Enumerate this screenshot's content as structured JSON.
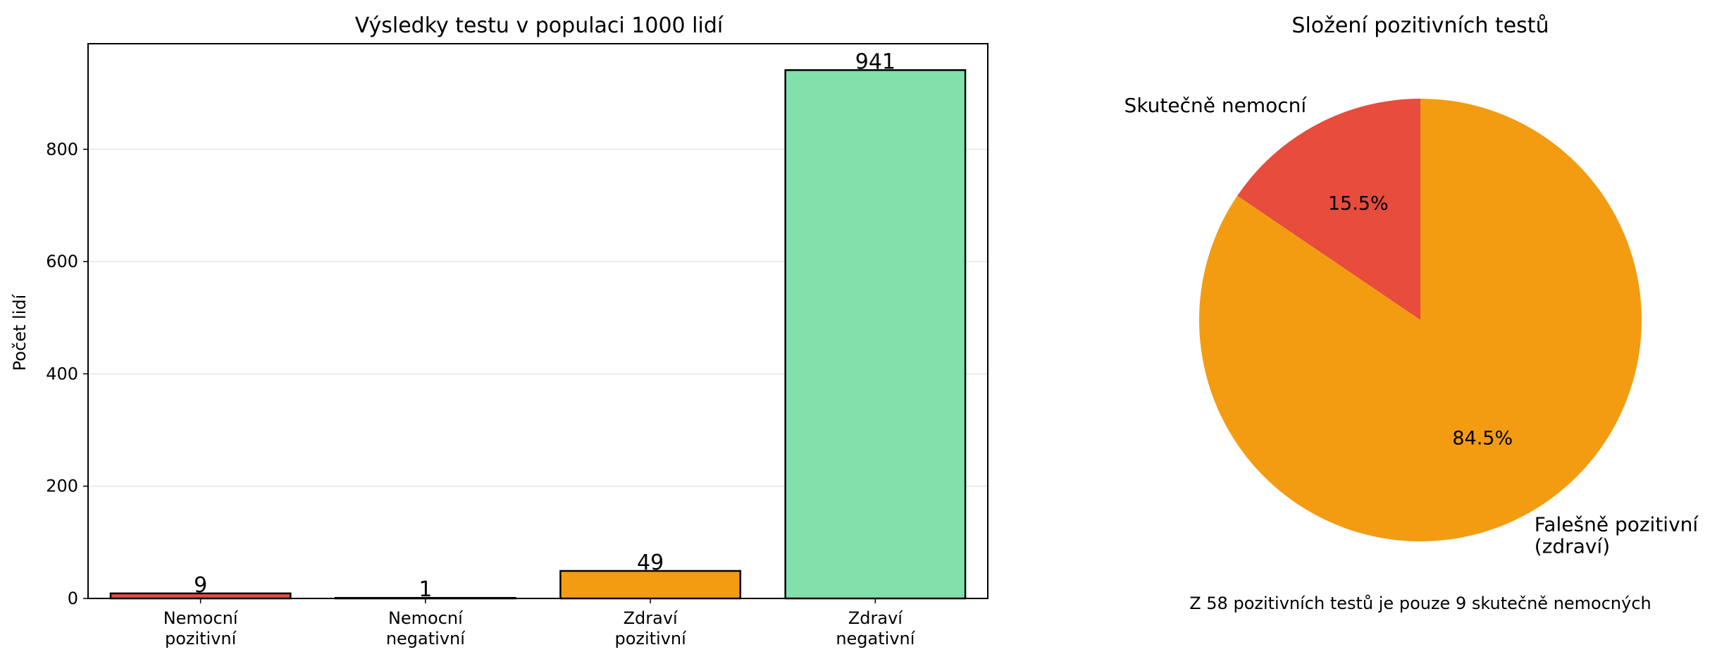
{
  "chart_data": [
    {
      "type": "bar",
      "title": "Výsledky testu v populaci 1000 lidí",
      "ylabel": "Počet lidí",
      "xlabel": "",
      "categories": [
        [
          "Nemocní",
          "pozitivní"
        ],
        [
          "Nemocní",
          "negativní"
        ],
        [
          "Zdraví",
          "pozitivní"
        ],
        [
          "Zdraví",
          "negativní"
        ]
      ],
      "values": [
        9,
        1,
        49,
        941
      ],
      "value_labels": [
        "9",
        "1",
        "49",
        "941"
      ],
      "colors": [
        "#e74c3c",
        "#e74c3c",
        "#f39c12",
        "#82e0aa"
      ],
      "ylim": [
        0,
        988
      ],
      "yticks": [
        0,
        200,
        400,
        600,
        800
      ],
      "grid": "y"
    },
    {
      "type": "pie",
      "title": "Složení pozitivních testů",
      "slices": [
        {
          "label": "Skutečně nemocní",
          "value": 9,
          "pct": "15.5%",
          "color": "#e74c3c"
        },
        {
          "label": "Falešně pozitivní\n(zdraví)",
          "value": 49,
          "pct": "84.5%",
          "color": "#f39c12"
        }
      ],
      "caption": "Z 58 pozitivních testů je pouze 9 skutečně nemocných"
    }
  ]
}
